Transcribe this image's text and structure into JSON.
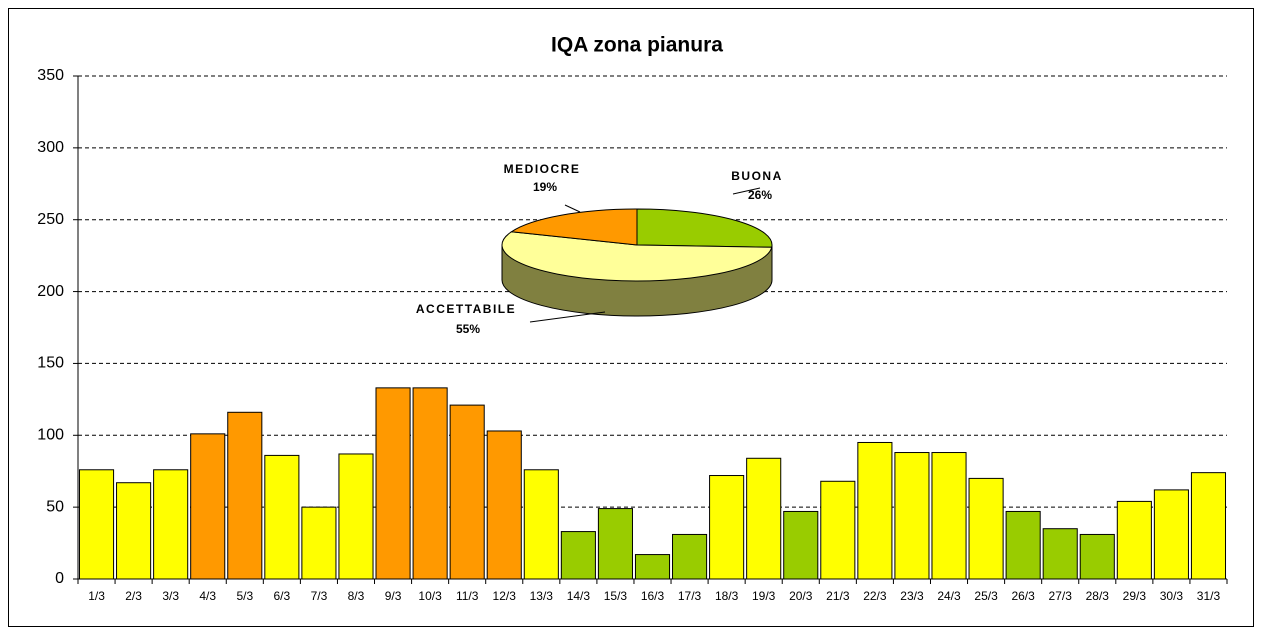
{
  "chart_data": [
    {
      "type": "bar",
      "title": "IQA zona pianura",
      "categories": [
        "1/3",
        "2/3",
        "3/3",
        "4/3",
        "5/3",
        "6/3",
        "7/3",
        "8/3",
        "9/3",
        "10/3",
        "11/3",
        "12/3",
        "13/3",
        "14/3",
        "15/3",
        "16/3",
        "17/3",
        "18/3",
        "19/3",
        "20/3",
        "21/3",
        "22/3",
        "23/3",
        "24/3",
        "25/3",
        "26/3",
        "27/3",
        "28/3",
        "29/3",
        "30/3",
        "31/3"
      ],
      "values": [
        76,
        67,
        76,
        101,
        116,
        86,
        50,
        87,
        133,
        133,
        121,
        103,
        76,
        33,
        49,
        17,
        31,
        72,
        84,
        47,
        68,
        95,
        88,
        88,
        70,
        47,
        35,
        31,
        54,
        62,
        74
      ],
      "colors": [
        "#ffff00",
        "#ffff00",
        "#ffff00",
        "#ff9900",
        "#ff9900",
        "#ffff00",
        "#ffff00",
        "#ffff00",
        "#ff9900",
        "#ff9900",
        "#ff9900",
        "#ff9900",
        "#ffff00",
        "#99cc00",
        "#99cc00",
        "#99cc00",
        "#99cc00",
        "#ffff00",
        "#ffff00",
        "#99cc00",
        "#ffff00",
        "#ffff00",
        "#ffff00",
        "#ffff00",
        "#ffff00",
        "#99cc00",
        "#99cc00",
        "#99cc00",
        "#ffff00",
        "#ffff00",
        "#ffff00"
      ],
      "ylim": [
        0,
        350
      ],
      "yticks": [
        0,
        50,
        100,
        150,
        200,
        250,
        300,
        350
      ],
      "grid": true
    },
    {
      "type": "pie",
      "categories": [
        "BUONA",
        "ACCETTABILE",
        "MEDIOCRE"
      ],
      "values": [
        26,
        55,
        19
      ],
      "value_labels": [
        "26%",
        "55%",
        "19%"
      ],
      "colors": [
        "#99cc00",
        "#ffff99",
        "#ff9900"
      ]
    }
  ]
}
